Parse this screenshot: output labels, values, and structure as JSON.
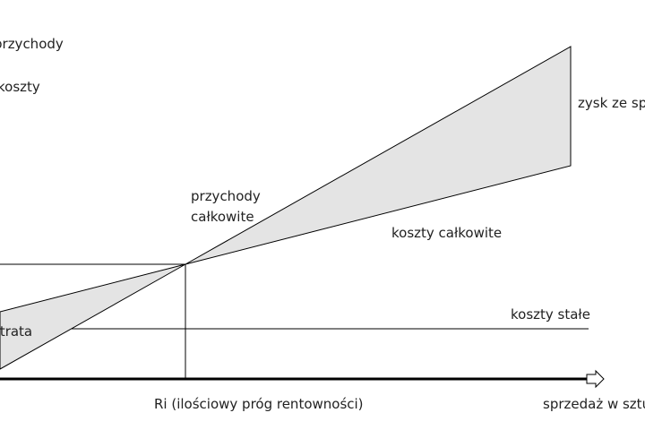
{
  "axis_labels": {
    "y_top": "przychody",
    "y_bottom": "koszty",
    "x": "sprzedaż w sztukach"
  },
  "labels": {
    "revenue": [
      "przychody",
      "całkowite"
    ],
    "total_costs": "koszty całkowite",
    "fixed_costs": "koszty stałe",
    "loss": "strata",
    "profit": "zysk ze sprzedaży",
    "break_even": "Ri (ilościowy próg rentowności)"
  }
}
